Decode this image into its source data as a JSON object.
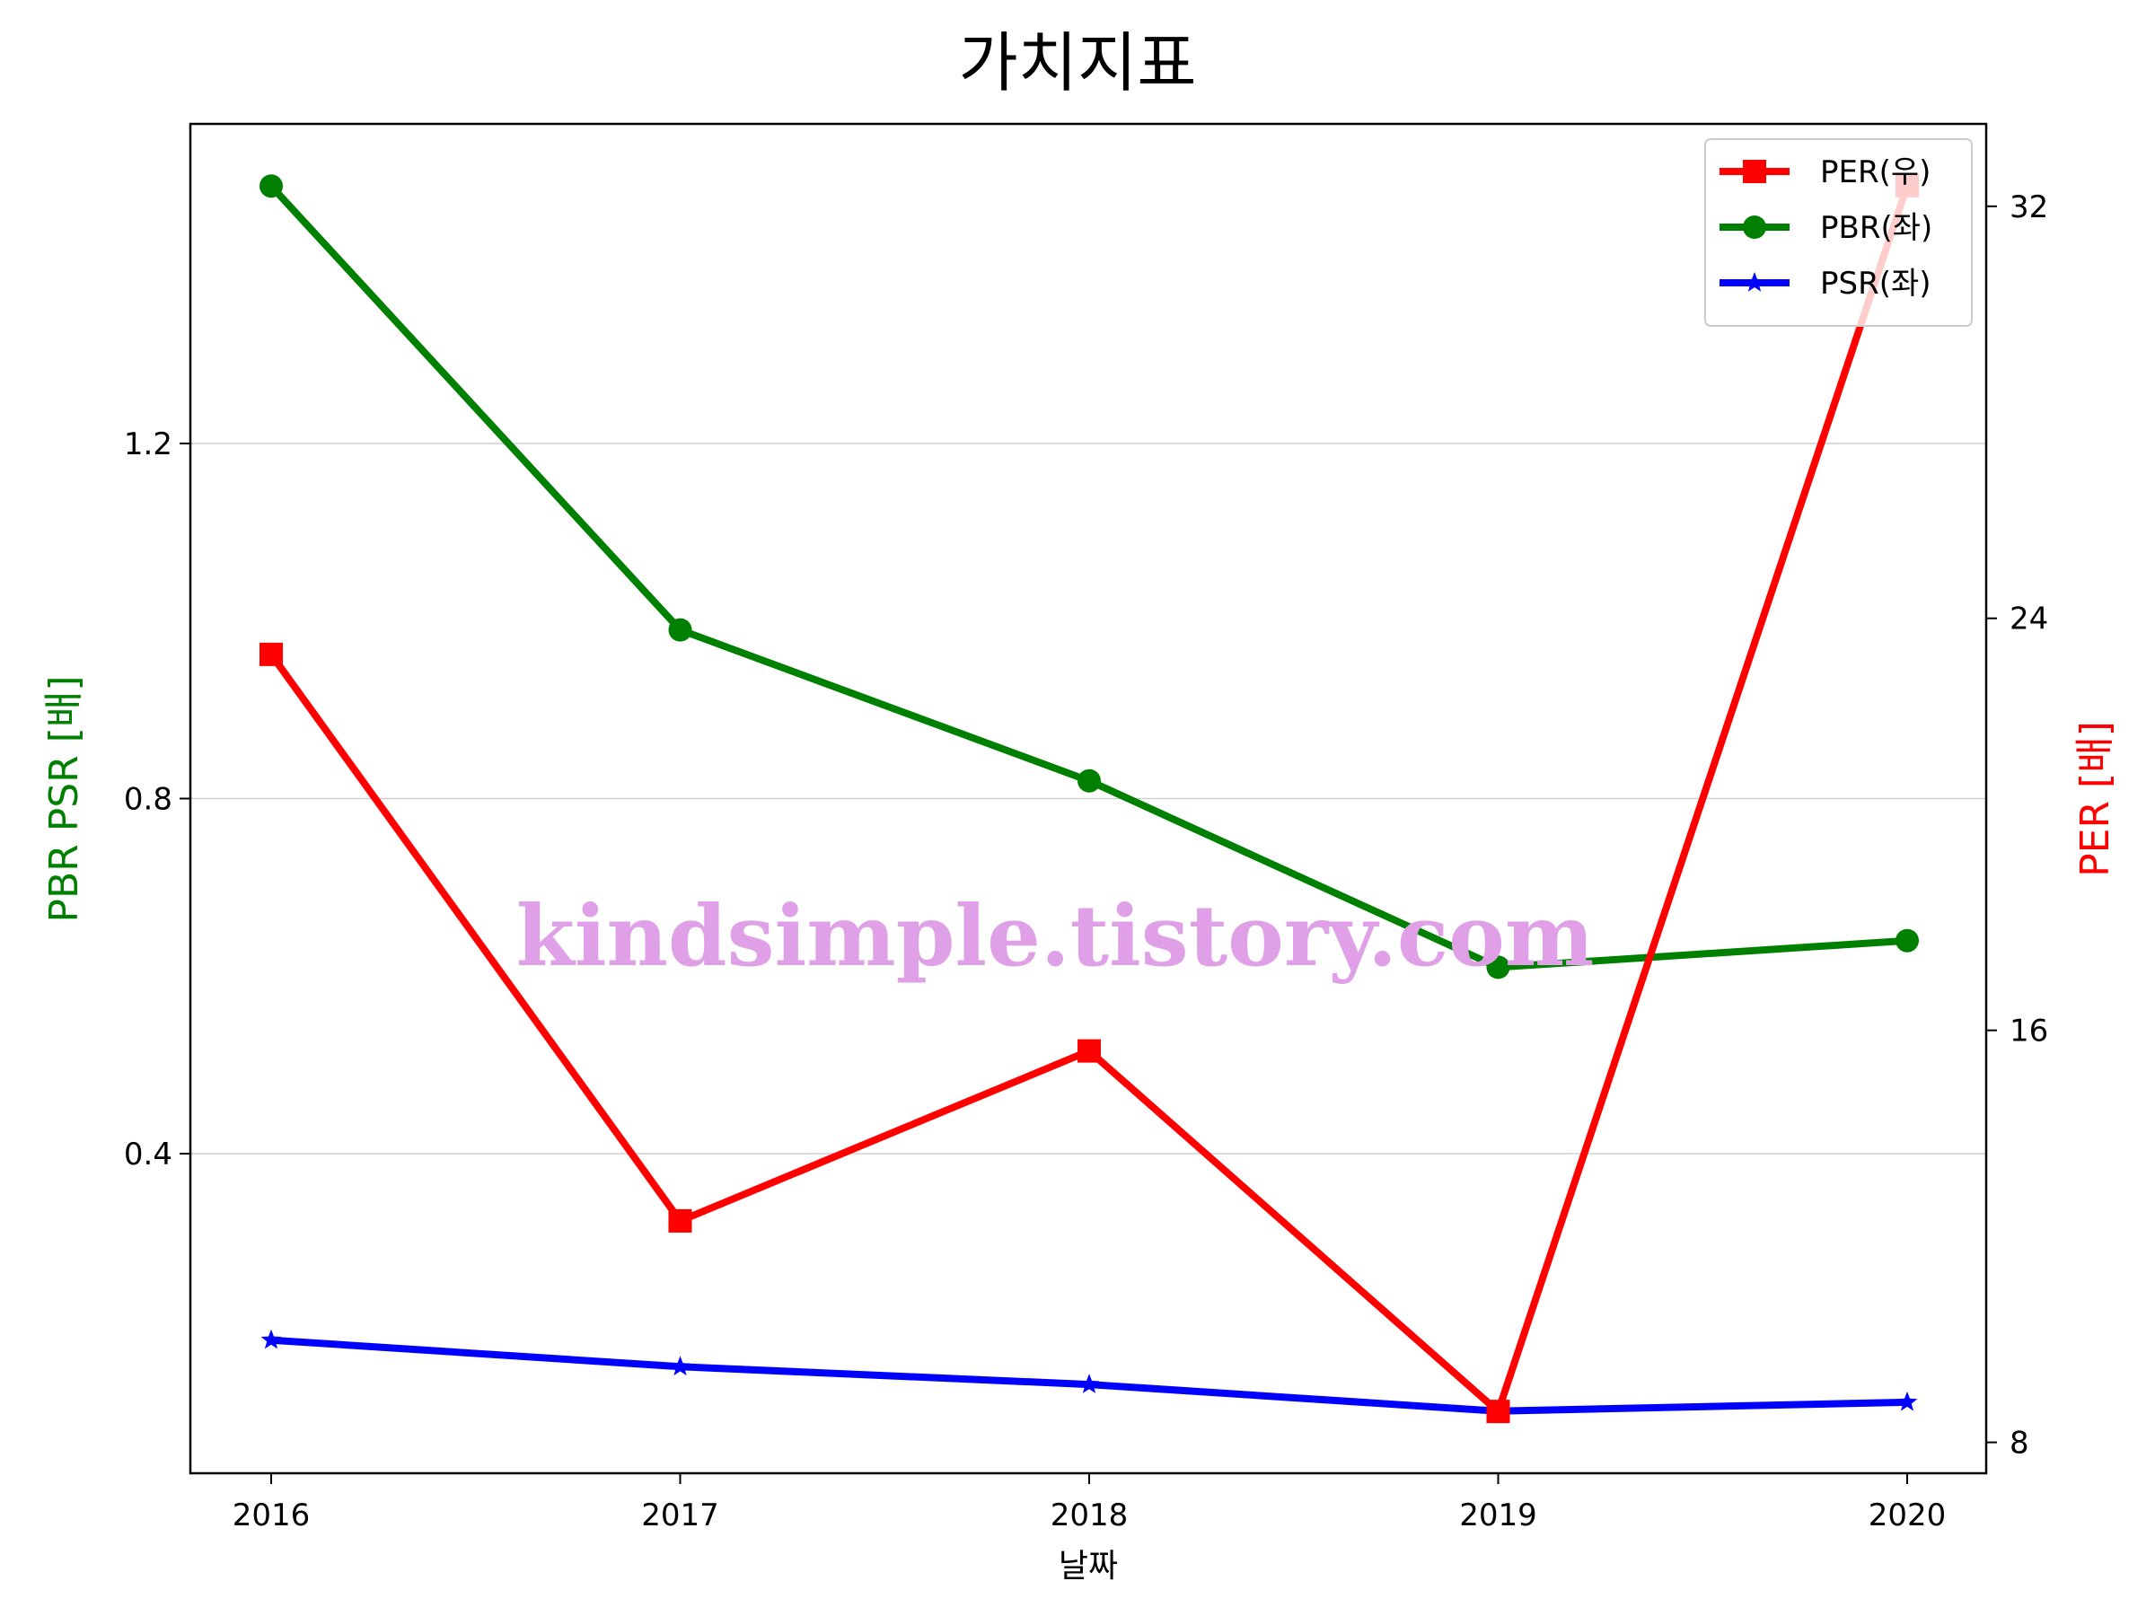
{
  "chart_data": {
    "type": "line",
    "title": "가치지표",
    "xlabel": "날짜",
    "ylabel_left": "PBR PSR [배]",
    "ylabel_right": "PER [배]",
    "categories": [
      "2016",
      "2017",
      "2018",
      "2019",
      "2020"
    ],
    "ylim_left": [
      0.04,
      1.56
    ],
    "yticks_left": [
      "0.4",
      "0.8",
      "1.2"
    ],
    "ylim_right": [
      7.4,
      33.6
    ],
    "yticks_right": [
      "8",
      "16",
      "24",
      "32"
    ],
    "grid": "horizontal",
    "legend_position": "top-right",
    "series": [
      {
        "name": "PER(우)",
        "axis": "right",
        "marker": "square",
        "color": "#ff0000",
        "values": [
          23.3,
          12.3,
          15.6,
          8.6,
          32.4
        ]
      },
      {
        "name": "PBR(좌)",
        "axis": "left",
        "marker": "circle",
        "color": "#008000",
        "values": [
          1.49,
          0.99,
          0.82,
          0.61,
          0.64
        ]
      },
      {
        "name": "PSR(좌)",
        "axis": "left",
        "marker": "star",
        "color": "#0000ff",
        "values": [
          0.19,
          0.16,
          0.14,
          0.11,
          0.12
        ]
      }
    ]
  },
  "watermark": "kindsimple.tistory.com",
  "colors": {
    "left_axis_label": "#008000",
    "right_axis_label": "#ff0000",
    "watermark": "#e0a0e8"
  }
}
